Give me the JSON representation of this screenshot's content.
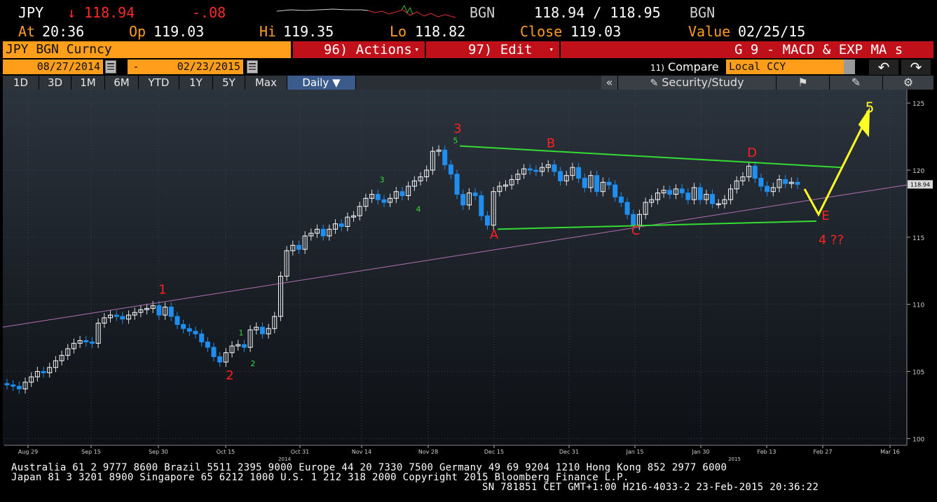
{
  "quote": {
    "ticker": "JPY",
    "arrow": "↓",
    "last": "118.94",
    "change": "-.08",
    "source1": "BGN",
    "bid_ask": "118.94 / 118.95",
    "source2": "BGN",
    "at_label": "At",
    "at_time": "20:36",
    "op_label": "Op",
    "op": "119.03",
    "hi_label": "Hi",
    "hi": "119.35",
    "lo_label": "Lo",
    "lo": "118.82",
    "close_label": "Close",
    "close": "119.03",
    "value_label": "Value",
    "value_date": "02/25/15"
  },
  "toolbar": {
    "security": "JPY BGN Curncy",
    "actions": "96) Actions",
    "edit": "97) Edit",
    "template": "G 9 - MACD & EXP MA s"
  },
  "dates": {
    "start": "08/27/2014",
    "sep": "-",
    "end": "02/23/2015",
    "compare_num": "11)",
    "compare": "Compare",
    "ccy": "Local CCY"
  },
  "tabs": [
    "1D",
    "3D",
    "1M",
    "6M",
    "YTD",
    "1Y",
    "5Y",
    "Max"
  ],
  "period": "Daily",
  "period_caret": "▼",
  "right_tools": {
    "collapse": "«",
    "security_study": "Security/Study"
  },
  "colors": {
    "up_candle": "#ffffff",
    "down_candle": "#1e8ff0",
    "trend_green": "#33dd33",
    "trend_pink": "#b46fb4",
    "projection": "#ffff22",
    "label_red": "#ff2020",
    "orange": "#ff9e1b"
  },
  "chart_data": {
    "type": "candlestick",
    "title": "",
    "ylim": [
      99.5,
      126
    ],
    "y_ticks": [
      "125",
      "120",
      "115",
      "110",
      "105",
      "100"
    ],
    "last_price_marker": "118.94",
    "x_ticks": [
      "Aug 29",
      "Sep 15",
      "Sep 30",
      "Oct 15",
      "Oct 31",
      "Nov 14",
      "Nov 28",
      "Dec 15",
      "Dec 31",
      "Jan 15",
      "Jan 30",
      "Feb 13",
      "Feb 27",
      "Mar 16"
    ],
    "year_labels": [
      "2014",
      "2015"
    ],
    "close_values": [
      104.0,
      103.9,
      103.7,
      104.2,
      104.6,
      105.0,
      104.9,
      105.3,
      105.8,
      106.2,
      106.7,
      107.1,
      107.3,
      107.2,
      107.1,
      108.6,
      109.0,
      109.2,
      109.1,
      108.9,
      109.2,
      109.4,
      109.6,
      109.7,
      109.9,
      109.2,
      109.8,
      109.1,
      108.5,
      108.2,
      108.0,
      107.8,
      107.2,
      106.8,
      106.1,
      105.7,
      106.4,
      106.9,
      107.0,
      106.8,
      108.1,
      108.3,
      107.8,
      108.2,
      109.1,
      112.1,
      114.0,
      114.4,
      114.1,
      115.1,
      115.3,
      115.6,
      115.1,
      115.6,
      116.0,
      115.8,
      116.5,
      116.6,
      117.3,
      117.9,
      118.2,
      117.8,
      117.6,
      117.9,
      118.4,
      118.1,
      118.8,
      119.2,
      119.5,
      120.0,
      121.4,
      121.5,
      120.4,
      119.7,
      118.2,
      117.4,
      118.3,
      118.1,
      116.6,
      115.9,
      118.4,
      118.8,
      118.9,
      119.3,
      119.7,
      120.1,
      120.0,
      119.9,
      120.2,
      120.4,
      119.9,
      119.2,
      119.6,
      120.2,
      119.4,
      118.7,
      119.6,
      118.4,
      119.1,
      118.9,
      118.0,
      117.6,
      116.7,
      115.9,
      116.7,
      117.6,
      117.8,
      118.3,
      118.5,
      118.2,
      118.6,
      118.3,
      117.8,
      118.7,
      117.8,
      118.2,
      117.5,
      117.5,
      117.8,
      118.6,
      119.2,
      119.5,
      120.3,
      119.4,
      118.8,
      118.4,
      118.7,
      119.3,
      119.0,
      119.1,
      118.94
    ],
    "annotations": [
      {
        "text": "1",
        "color": "red",
        "x": "Sep 30",
        "y": 110.8
      },
      {
        "text": "2",
        "color": "red",
        "x": "Oct 15",
        "y": 104.4
      },
      {
        "text": "3",
        "color": "red",
        "x": "Nov 28",
        "y": 122.8
      },
      {
        "text": "4 ??",
        "color": "red",
        "x": "Feb 27",
        "y": 114.5
      },
      {
        "text": "5",
        "color": "yellow",
        "x": "Mar 16",
        "y": 124.3
      },
      {
        "text": "A",
        "color": "red",
        "x": "Dec 15",
        "y": 114.9
      },
      {
        "text": "B",
        "color": "red",
        "x": "Dec 31",
        "y": 121.7
      },
      {
        "text": "C",
        "color": "red",
        "x": "Jan 15",
        "y": 115.2
      },
      {
        "text": "D",
        "color": "red",
        "x": "Feb 13",
        "y": 121.0
      },
      {
        "text": "E",
        "color": "red",
        "x": "Feb 27",
        "y": 116.3
      },
      {
        "text": "1",
        "color": "green",
        "x": "Oct 15",
        "y": 107.7
      },
      {
        "text": "2",
        "color": "green",
        "x": "Oct 15",
        "y": 105.4
      },
      {
        "text": "3",
        "color": "green",
        "x": "Nov 14",
        "y": 119.1
      },
      {
        "text": "4",
        "color": "green",
        "x": "Nov 14",
        "y": 116.9
      },
      {
        "text": "5",
        "color": "green",
        "x": "Nov 28",
        "y": 122.0
      }
    ]
  },
  "footer": {
    "line1": "Australia 61 2 9777 8600 Brazil 5511 2395 9000 Europe 44 20 7330 7500 Germany 49 69 9204 1210 Hong Kong 852 2977 6000",
    "line2": "Japan 81 3 3201 8900         Singapore 65 6212 1000        U.S. 1 212 318 2000            Copyright 2015 Bloomberg Finance L.P.",
    "line3": "SN 781851 CET  GMT+1:00 H216-4033-2 23-Feb-2015 20:36:22"
  }
}
